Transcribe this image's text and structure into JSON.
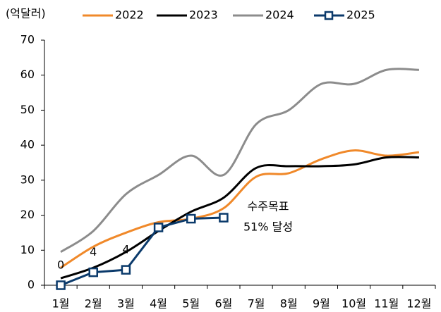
{
  "chart_data": {
    "type": "line",
    "unit_label": "(억달러)",
    "categories": [
      "1월",
      "2월",
      "3월",
      "4월",
      "5월",
      "6월",
      "7월",
      "8월",
      "9월",
      "10월",
      "11월",
      "12월"
    ],
    "series": [
      {
        "name": "2022",
        "color": "#f0892a",
        "smooth": true,
        "values": [
          5,
          11,
          15,
          18,
          19,
          22,
          31,
          32,
          36,
          38.5,
          37,
          38
        ]
      },
      {
        "name": "2023",
        "color": "#000000",
        "smooth": true,
        "values": [
          2,
          5,
          9.5,
          15.5,
          21,
          25,
          33.5,
          34,
          34,
          34.5,
          36.5,
          36.5
        ]
      },
      {
        "name": "2024",
        "color": "#8c8c8c",
        "smooth": true,
        "values": [
          9.5,
          15.5,
          26,
          31.5,
          37,
          31.5,
          46,
          50,
          57.5,
          57.5,
          61.5,
          61.5
        ]
      },
      {
        "name": "2025",
        "color": "#0b3a6b",
        "smooth": false,
        "marker": "square",
        "values": [
          0,
          3.7,
          4.4,
          16.5,
          19,
          19.3,
          null,
          null,
          null,
          null,
          null,
          null
        ],
        "value_labels": [
          "0",
          "4",
          "4",
          null,
          null,
          null,
          null,
          null,
          null,
          null,
          null,
          null
        ]
      }
    ],
    "annotation": [
      "수주목표",
      "51% 달성"
    ],
    "ylim": [
      0,
      70
    ],
    "yticks": [
      0,
      10,
      20,
      30,
      40,
      50,
      60,
      70
    ],
    "legend": "top",
    "grid": false
  }
}
